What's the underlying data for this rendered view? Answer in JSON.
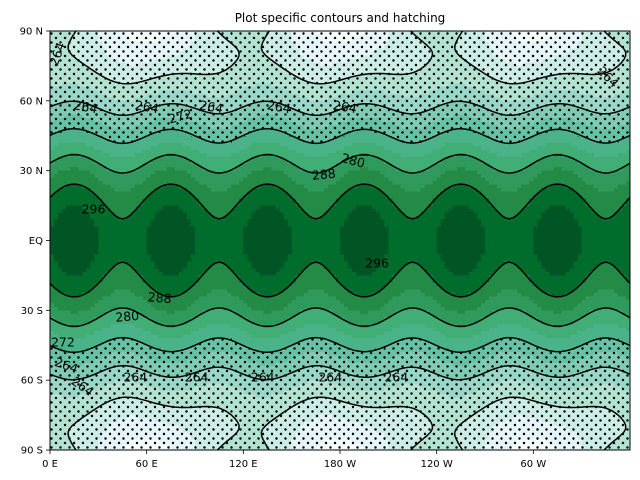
{
  "chart_data": {
    "type": "contour",
    "title": "Plot specific contours and hatching",
    "xlabel": "",
    "ylabel": "",
    "x_ticks": [
      "0 E",
      "60 E",
      "120 E",
      "180 W",
      "120 W",
      "60 W"
    ],
    "x_tick_values": [
      0,
      60,
      120,
      180,
      240,
      300
    ],
    "y_ticks": [
      "90 N",
      "60 N",
      "30 N",
      "EQ",
      "30 S",
      "60 S",
      "90 S"
    ],
    "y_tick_values": [
      90,
      60,
      30,
      0,
      -30,
      -60,
      -90
    ],
    "xlim": [
      0,
      360
    ],
    "ylim": [
      -90,
      90
    ],
    "colormap": "BuGn",
    "colors": {
      "low": "#e5f5f9",
      "mid": "#66c2a4",
      "high": "#00441b",
      "contour_line": "#000000"
    },
    "contour_levels": [
      264,
      272,
      280,
      288,
      296
    ],
    "hatching": "dots where value < 280",
    "contour_labels": [
      "264",
      "264",
      "264",
      "264",
      "264",
      "264",
      "264",
      "272",
      "280",
      "288",
      "296",
      "264",
      "264",
      "264",
      "264",
      "264",
      "264",
      "264",
      "272",
      "280",
      "288",
      "296"
    ]
  }
}
